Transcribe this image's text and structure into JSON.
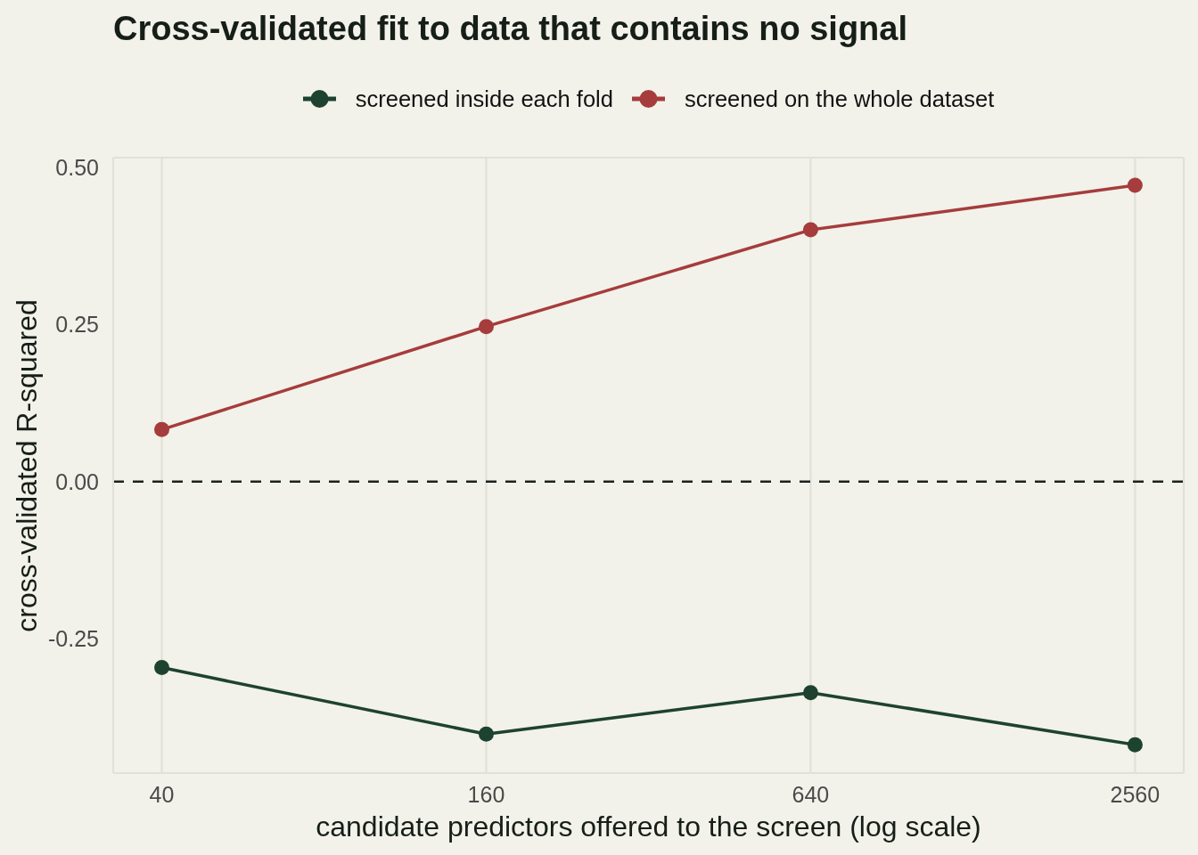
{
  "chart_data": {
    "type": "line",
    "title": "Cross-validated fit to data that contains no signal",
    "xlabel": "candidate predictors offered to the screen (log scale)",
    "ylabel": "cross-validated R-squared",
    "x": [
      40,
      160,
      640,
      2560
    ],
    "series": [
      {
        "name": "screened inside each fold",
        "color": "#1e4230",
        "values": [
          -0.296,
          -0.402,
          -0.336,
          -0.419
        ]
      },
      {
        "name": "screened on the whole dataset",
        "color": "#a63c3c",
        "values": [
          0.083,
          0.247,
          0.401,
          0.472
        ]
      }
    ],
    "xlim": [
      32.5,
      3152
    ],
    "ylim": [
      -0.464,
      0.516
    ],
    "xticks": [
      40,
      160,
      640,
      2560
    ],
    "yticks": [
      {
        "value": -0.25,
        "label": "-0.25"
      },
      {
        "value": 0,
        "label": "0.00"
      },
      {
        "value": 0.25,
        "label": "0.25"
      },
      {
        "value": 0.5,
        "label": "0.50"
      }
    ],
    "log": "x",
    "grid": true,
    "legend": "top",
    "marker": "circle",
    "line_style": "solid",
    "ref_lines": [
      {
        "axis": "y",
        "value": 0,
        "color": "#1b211d",
        "line_style": "dashed"
      }
    ]
  }
}
